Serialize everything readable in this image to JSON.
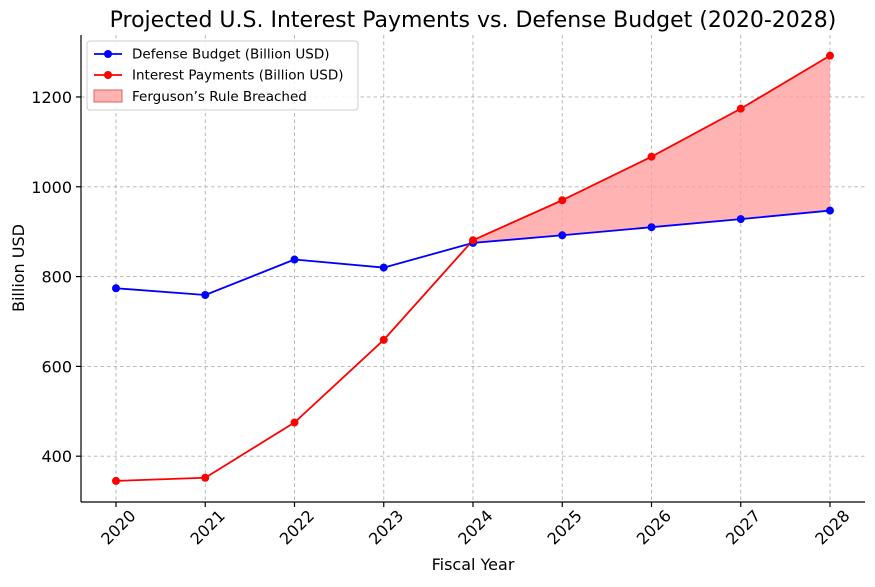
{
  "chart_data": {
    "type": "line",
    "title": "Projected U.S. Interest Payments vs. Defense Budget (2020-2028)",
    "xlabel": "Fiscal Year",
    "ylabel": "Billion USD",
    "categories": [
      "2020",
      "2021",
      "2022",
      "2023",
      "2024",
      "2025",
      "2026",
      "2027",
      "2028"
    ],
    "ylim": [
      298,
      1338
    ],
    "yticks": [
      400,
      600,
      800,
      1000,
      1200
    ],
    "grid": true,
    "legend_position": "top-left",
    "series": [
      {
        "name": "Defense Budget (Billion USD)",
        "color": "#0000ff",
        "values": [
          774,
          759,
          838,
          820,
          875,
          892,
          910,
          928,
          947
        ]
      },
      {
        "name": "Interest Payments (Billion USD)",
        "color": "#ff0000",
        "values": [
          345,
          352,
          475,
          659,
          881,
          970,
          1067,
          1174,
          1292
        ]
      }
    ],
    "fill_between": {
      "name": "Ferguson’s Rule Breached",
      "color": "#ff9999",
      "from_category": "2024",
      "to_category": "2028"
    }
  }
}
